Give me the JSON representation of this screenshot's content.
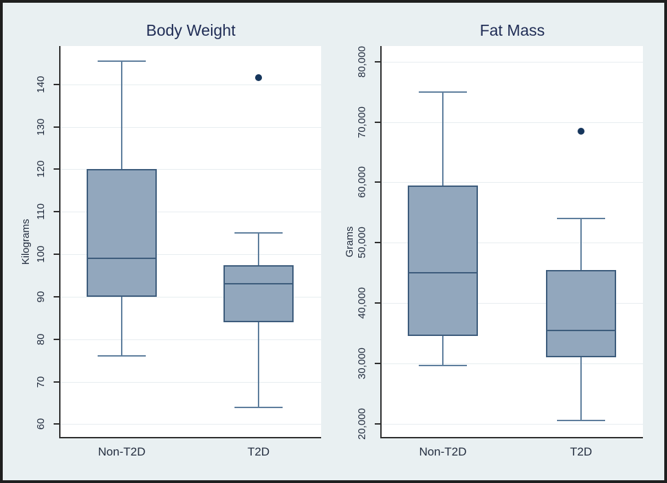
{
  "figure": {
    "kind": "stata-style box plot figure",
    "charts_count": 2
  },
  "colors": {
    "background": "#e9f0f2",
    "plot_background": "#ffffff",
    "frame": "#1f1f1f",
    "gridline": "#e7edf0",
    "axis": "#2e2e2e",
    "box_fill": "#92a7bd",
    "box_border": "#3d5c7c",
    "whisker": "#5e7e9d",
    "outlier": "#16365c",
    "title_text": "#1f2c55",
    "tick_text": "#232d3f"
  },
  "chart_data": [
    {
      "type": "box",
      "title": "Body Weight",
      "xlabel": "",
      "ylabel": "Kilograms",
      "categories": [
        "Non-T2D",
        "T2D"
      ],
      "ylim": [
        57,
        149
      ],
      "yticks": [
        60,
        70,
        80,
        90,
        100,
        110,
        120,
        130,
        140
      ],
      "ytick_labels": [
        "60",
        "70",
        "80",
        "90",
        "100",
        "110",
        "120",
        "130",
        "140"
      ],
      "grid": true,
      "legend": "none",
      "series": [
        {
          "name": "Non-T2D",
          "whisker_low": 76,
          "q1": 90,
          "median": 99,
          "q3": 120,
          "whisker_high": 145.5,
          "outliers": []
        },
        {
          "name": "T2D",
          "whisker_low": 64,
          "q1": 84,
          "median": 93,
          "q3": 97.5,
          "whisker_high": 105,
          "outliers": [
            141.5
          ]
        }
      ]
    },
    {
      "type": "box",
      "title": "Fat Mass",
      "xlabel": "",
      "ylabel": "Grams",
      "categories": [
        "Non-T2D",
        "T2D"
      ],
      "ylim": [
        17800,
        82600
      ],
      "yticks": [
        20000,
        30000,
        40000,
        50000,
        60000,
        70000,
        80000
      ],
      "ytick_labels": [
        "20,000",
        "30,000",
        "40,000",
        "50,000",
        "60,000",
        "70,000",
        "80,000"
      ],
      "grid": true,
      "legend": "none",
      "series": [
        {
          "name": "Non-T2D",
          "whisker_low": 29700,
          "q1": 34500,
          "median": 45000,
          "q3": 59500,
          "whisker_high": 75000,
          "outliers": []
        },
        {
          "name": "T2D",
          "whisker_low": 20500,
          "q1": 31000,
          "median": 35500,
          "q3": 45500,
          "whisker_high": 54000,
          "outliers": [
            68500
          ]
        }
      ]
    }
  ]
}
